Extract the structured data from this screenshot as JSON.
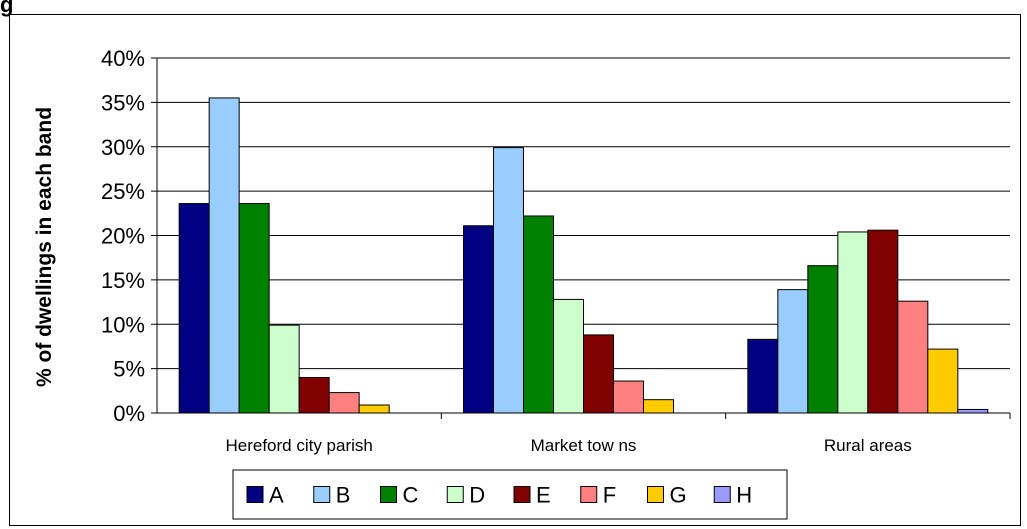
{
  "page": {
    "top_glyph": "g"
  },
  "chart_data": {
    "type": "bar",
    "title": "",
    "xlabel": "",
    "ylabel": "% of dwellings in each band",
    "categories": [
      "Hereford city parish",
      "Market tow ns",
      "Rural areas"
    ],
    "ylim": [
      0,
      40
    ],
    "yticks": [
      0,
      5,
      10,
      15,
      20,
      25,
      30,
      35,
      40
    ],
    "ytick_labels": [
      "0%",
      "5%",
      "10%",
      "15%",
      "20%",
      "25%",
      "30%",
      "35%",
      "40%"
    ],
    "grid": true,
    "legend_position": "bottom",
    "series": [
      {
        "name": "A",
        "color": "#000080",
        "values": [
          23.6,
          21.1,
          8.3
        ]
      },
      {
        "name": "B",
        "color": "#99ccff",
        "values": [
          35.5,
          29.9,
          13.9
        ]
      },
      {
        "name": "C",
        "color": "#008000",
        "values": [
          23.6,
          22.2,
          16.6
        ]
      },
      {
        "name": "D",
        "color": "#ccffcc",
        "values": [
          9.9,
          12.8,
          20.4
        ]
      },
      {
        "name": "E",
        "color": "#800000",
        "values": [
          4.0,
          8.8,
          20.6
        ]
      },
      {
        "name": "F",
        "color": "#ff8080",
        "values": [
          2.3,
          3.6,
          12.6
        ]
      },
      {
        "name": "G",
        "color": "#ffcc00",
        "values": [
          0.9,
          1.5,
          7.2
        ]
      },
      {
        "name": "H",
        "color": "#9999ff",
        "values": [
          0.0,
          0.0,
          0.4
        ]
      }
    ]
  }
}
